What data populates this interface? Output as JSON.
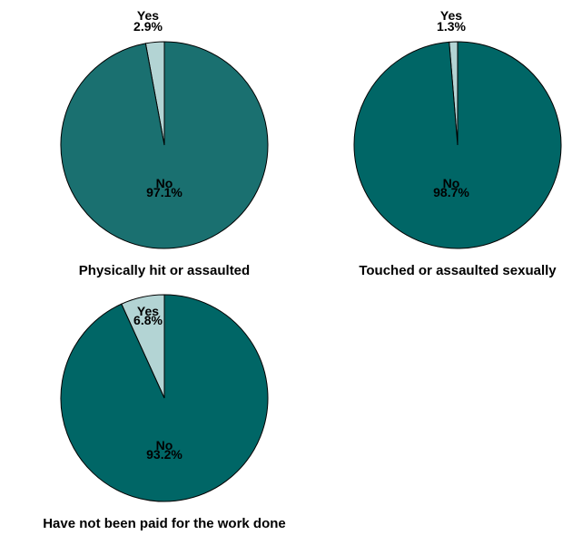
{
  "chart_data": [
    {
      "type": "pie",
      "title": "Physically hit or assaulted",
      "slices": [
        {
          "label": "Yes",
          "value": 2.9,
          "value_label": "2.9%",
          "color": "#b3d4d4"
        },
        {
          "label": "No",
          "value": 97.1,
          "value_label": "97.1%",
          "color": "#1a7070"
        }
      ]
    },
    {
      "type": "pie",
      "title": "Touched or assaulted sexually",
      "slices": [
        {
          "label": "Yes",
          "value": 1.3,
          "value_label": "1.3%",
          "color": "#b3d4d4"
        },
        {
          "label": "No",
          "value": 98.7,
          "value_label": "98.7%",
          "color": "#006666"
        }
      ]
    },
    {
      "type": "pie",
      "title": "Have not been paid for the work done",
      "slices": [
        {
          "label": "Yes",
          "value": 6.8,
          "value_label": "6.8%",
          "color": "#b3d4d4"
        },
        {
          "label": "No",
          "value": 93.2,
          "value_label": "93.2%",
          "color": "#006666"
        }
      ]
    }
  ]
}
